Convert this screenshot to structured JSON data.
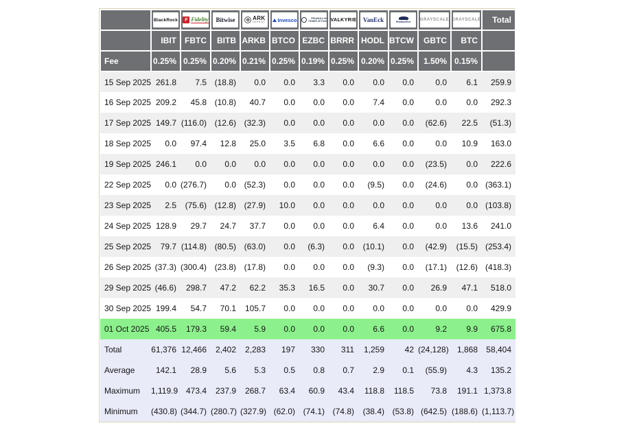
{
  "colors": {
    "header_gray": "#6e6f72",
    "highlight_green": "#8cf18c",
    "summary_lavender": "#e9ebf9",
    "negative_red": "#fb352b",
    "stripe_gray": "#efefef",
    "table_border": "#d8d3b4"
  },
  "table": {
    "total_label": "Total",
    "fee_label": "Fee",
    "providers": [
      {
        "name": "blackrock",
        "text": "BlackRock"
      },
      {
        "name": "fidelity",
        "text": "Fidelity",
        "initial": "F"
      },
      {
        "name": "bitwise",
        "text": "Bitwise"
      },
      {
        "name": "ark-invest",
        "text": "ARK",
        "sub": "INVEST"
      },
      {
        "name": "invesco",
        "text": "Invesco"
      },
      {
        "name": "franklin-templeton",
        "text": "FRANKLIN",
        "sub": "TEMPLETON"
      },
      {
        "name": "valkyrie",
        "text": "VALKYRIE"
      },
      {
        "name": "vaneck",
        "text": "VanEck"
      },
      {
        "name": "wisdomtree",
        "text": "WisdomTree"
      },
      {
        "name": "grayscale",
        "text": "GRAYSCALE"
      },
      {
        "name": "grayscale",
        "text": "GRAYSCALE"
      }
    ],
    "tickers": [
      "IBIT",
      "FBTC",
      "BITB",
      "ARKB",
      "BTCO",
      "EZBC",
      "BRRR",
      "HODL",
      "BTCW",
      "GBTC",
      "BTC"
    ],
    "fees": [
      "0.25%",
      "0.25%",
      "0.20%",
      "0.21%",
      "0.25%",
      "0.19%",
      "0.25%",
      "0.20%",
      "0.25%",
      "1.50%",
      "0.15%"
    ],
    "rows": [
      {
        "date": "15 Sep 2025",
        "values": [
          "261.8",
          "7.5",
          "(18.8)",
          "0.0",
          "0.0",
          "3.3",
          "0.0",
          "0.0",
          "0.0",
          "0.0",
          "6.1",
          "259.9"
        ]
      },
      {
        "date": "16 Sep 2025",
        "values": [
          "209.2",
          "45.8",
          "(10.8)",
          "40.7",
          "0.0",
          "0.0",
          "0.0",
          "7.4",
          "0.0",
          "0.0",
          "0.0",
          "292.3"
        ]
      },
      {
        "date": "17 Sep 2025",
        "values": [
          "149.7",
          "(116.0)",
          "(12.6)",
          "(32.3)",
          "0.0",
          "0.0",
          "0.0",
          "0.0",
          "0.0",
          "(62.6)",
          "22.5",
          "(51.3)"
        ]
      },
      {
        "date": "18 Sep 2025",
        "values": [
          "0.0",
          "97.4",
          "12.8",
          "25.0",
          "3.5",
          "6.8",
          "0.0",
          "6.6",
          "0.0",
          "0.0",
          "10.9",
          "163.0"
        ]
      },
      {
        "date": "19 Sep 2025",
        "values": [
          "246.1",
          "0.0",
          "0.0",
          "0.0",
          "0.0",
          "0.0",
          "0.0",
          "0.0",
          "0.0",
          "(23.5)",
          "0.0",
          "222.6"
        ]
      },
      {
        "date": "22 Sep 2025",
        "values": [
          "0.0",
          "(276.7)",
          "0.0",
          "(52.3)",
          "0.0",
          "0.0",
          "0.0",
          "(9.5)",
          "0.0",
          "(24.6)",
          "0.0",
          "(363.1)"
        ]
      },
      {
        "date": "23 Sep 2025",
        "values": [
          "2.5",
          "(75.6)",
          "(12.8)",
          "(27.9)",
          "10.0",
          "0.0",
          "0.0",
          "0.0",
          "0.0",
          "0.0",
          "0.0",
          "(103.8)"
        ]
      },
      {
        "date": "24 Sep 2025",
        "values": [
          "128.9",
          "29.7",
          "24.7",
          "37.7",
          "0.0",
          "0.0",
          "0.0",
          "6.4",
          "0.0",
          "0.0",
          "13.6",
          "241.0"
        ]
      },
      {
        "date": "25 Sep 2025",
        "values": [
          "79.7",
          "(114.8)",
          "(80.5)",
          "(63.0)",
          "0.0",
          "(6.3)",
          "0.0",
          "(10.1)",
          "0.0",
          "(42.9)",
          "(15.5)",
          "(253.4)"
        ]
      },
      {
        "date": "26 Sep 2025",
        "values": [
          "(37.3)",
          "(300.4)",
          "(23.8)",
          "(17.8)",
          "0.0",
          "0.0",
          "0.0",
          "(9.3)",
          "0.0",
          "(17.1)",
          "(12.6)",
          "(418.3)"
        ]
      },
      {
        "date": "29 Sep 2025",
        "values": [
          "(46.6)",
          "298.7",
          "47.2",
          "62.2",
          "35.3",
          "16.5",
          "0.0",
          "30.7",
          "0.0",
          "26.9",
          "47.1",
          "518.0"
        ]
      },
      {
        "date": "30 Sep 2025",
        "values": [
          "199.4",
          "54.7",
          "70.1",
          "105.7",
          "0.0",
          "0.0",
          "0.0",
          "0.0",
          "0.0",
          "0.0",
          "0.0",
          "429.9"
        ]
      },
      {
        "date": "01 Oct 2025",
        "highlight": true,
        "values": [
          "405.5",
          "179.3",
          "59.4",
          "5.9",
          "0.0",
          "0.0",
          "0.0",
          "6.6",
          "0.0",
          "9.2",
          "9.9",
          "675.8"
        ]
      }
    ],
    "summary": [
      {
        "label": "Total",
        "values": [
          "61,376",
          "12,466",
          "2,402",
          "2,283",
          "197",
          "330",
          "311",
          "1,259",
          "42",
          "(24,128)",
          "1,868",
          "58,404"
        ]
      },
      {
        "label": "Average",
        "values": [
          "142.1",
          "28.9",
          "5.6",
          "5.3",
          "0.5",
          "0.8",
          "0.7",
          "2.9",
          "0.1",
          "(55.9)",
          "4.3",
          "135.2"
        ]
      },
      {
        "label": "Maximum",
        "values": [
          "1,119.9",
          "473.4",
          "237.9",
          "268.7",
          "63.4",
          "60.9",
          "43.4",
          "118.8",
          "118.5",
          "73.8",
          "191.1",
          "1,373.8"
        ]
      },
      {
        "label": "Minimum",
        "values": [
          "(430.8)",
          "(344.7)",
          "(280.7)",
          "(327.9)",
          "(62.0)",
          "(74.1)",
          "(74.8)",
          "(38.4)",
          "(53.8)",
          "(642.5)",
          "(188.6)",
          "(1,113.7)"
        ]
      }
    ]
  }
}
